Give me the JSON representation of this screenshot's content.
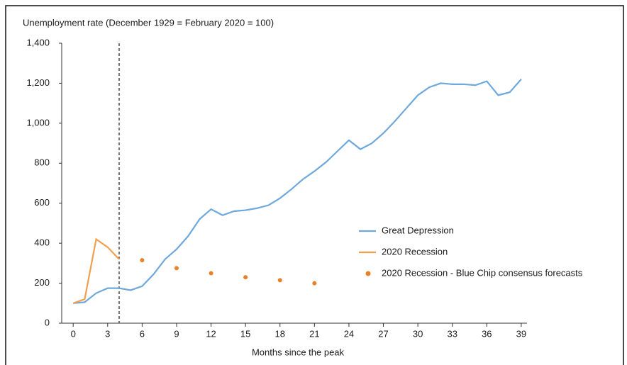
{
  "chart_data": {
    "type": "line",
    "title": "Unemployment rate (December 1929 = February 2020 = 100)",
    "x_label": "Months since the peak",
    "xlim": [
      -1,
      39.5
    ],
    "xticks": [
      0,
      3,
      6,
      9,
      12,
      15,
      18,
      21,
      24,
      27,
      30,
      33,
      36,
      39
    ],
    "ylim": [
      0,
      1400
    ],
    "yticks": [
      0,
      200,
      400,
      600,
      800,
      {
        "value": 1000,
        "label": "1,000"
      },
      {
        "value": 1200,
        "label": "1,200"
      },
      {
        "value": 1400,
        "label": "1,400"
      }
    ],
    "reference_line": {
      "x": 4,
      "style": "dashed",
      "color": "#222222"
    },
    "legend": "right",
    "series": [
      {
        "name": "Great Depression",
        "kind": "line",
        "color": "#6fa8dc",
        "x": [
          0,
          1,
          2,
          3,
          4,
          5,
          6,
          7,
          8,
          9,
          10,
          11,
          12,
          13,
          14,
          15,
          16,
          17,
          18,
          19,
          20,
          21,
          22,
          23,
          24,
          25,
          26,
          27,
          28,
          29,
          30,
          31,
          32,
          33,
          34,
          35,
          36,
          37,
          38,
          39
        ],
        "values": [
          100,
          105,
          150,
          175,
          175,
          165,
          185,
          245,
          320,
          370,
          435,
          520,
          570,
          540,
          560,
          565,
          575,
          590,
          625,
          670,
          720,
          760,
          805,
          860,
          915,
          870,
          900,
          950,
          1010,
          1075,
          1140,
          1180,
          1200,
          1195,
          1195,
          1190,
          1210,
          1140,
          1155,
          1220
        ]
      },
      {
        "name": "2020 Recession",
        "kind": "line",
        "color": "#f0a050",
        "x": [
          0,
          1,
          2,
          3,
          4
        ],
        "values": [
          100,
          120,
          420,
          380,
          320
        ]
      },
      {
        "name": "2020 Recession - Blue Chip consensus forecasts",
        "kind": "scatter",
        "color": "#e8822a",
        "x": [
          6,
          9,
          12,
          15,
          18,
          21
        ],
        "values": [
          315,
          275,
          250,
          230,
          215,
          200
        ]
      }
    ]
  }
}
